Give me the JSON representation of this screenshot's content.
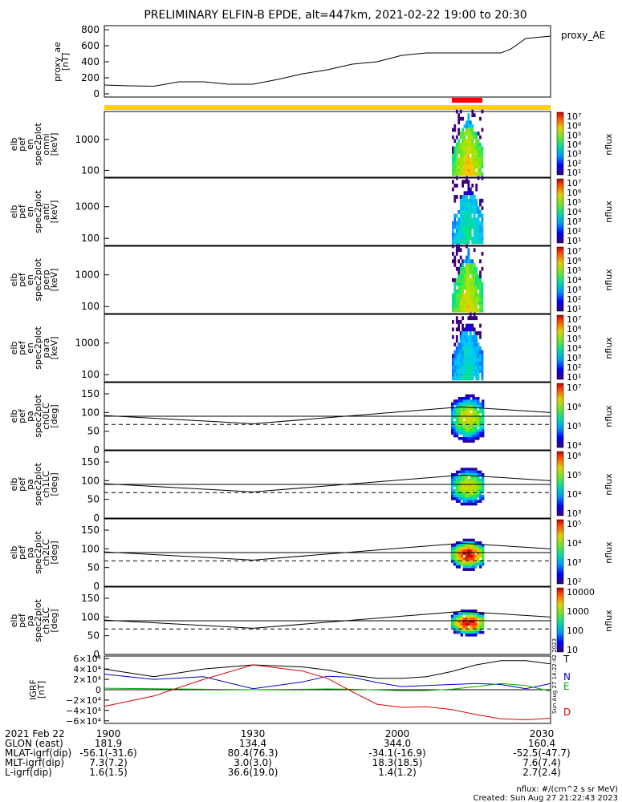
{
  "title": "PRELIMINARY ELFIN-B EPDE, alt=447km, 2021-02-22 19:00 to 20:30",
  "colors": {
    "orbit_bar": "#ffd200",
    "event_bar": "#ff0000",
    "N": "#0000cc",
    "E": "#00aa00",
    "D": "#dd0000",
    "total": "#000000"
  },
  "time_axis": {
    "ticks": [
      "1900",
      "1930",
      "2000",
      "2030"
    ],
    "start": "19:00",
    "end": "20:30"
  },
  "chart_data": [
    {
      "type": "line",
      "panel": "proxy_ae",
      "ylabel_lines": [
        "proxy_ae",
        "[nT]"
      ],
      "legend": "proxy_AE",
      "ylim": [
        -40,
        850
      ],
      "yticks": [
        "800",
        "600",
        "400",
        "200",
        "0"
      ],
      "ytick_values": [
        800,
        600,
        400,
        200,
        0
      ],
      "x_minutes": [
        0,
        5,
        10,
        15,
        20,
        25,
        30,
        35,
        40,
        45,
        50,
        55,
        60,
        65,
        70,
        75,
        80,
        82,
        85,
        90
      ],
      "values": [
        110,
        100,
        95,
        150,
        150,
        120,
        120,
        180,
        250,
        300,
        370,
        400,
        480,
        510,
        510,
        510,
        510,
        560,
        690,
        720
      ]
    },
    {
      "type": "heatmap",
      "panel": "omni",
      "ylabel_lines": [
        "elb",
        "pef",
        "en",
        "spec2plot",
        "omni",
        "[keV]"
      ],
      "yticks": [
        "1000",
        "100"
      ],
      "cbar_label": "nflux",
      "cbar_ticks": [
        "10⁷",
        "10⁶",
        "10⁵",
        "10⁴",
        "10³",
        "10²",
        "10¹"
      ]
    },
    {
      "type": "heatmap",
      "panel": "anti",
      "ylabel_lines": [
        "elb",
        "pef",
        "en",
        "spec2plot",
        "anti",
        "[keV]"
      ],
      "yticks": [
        "1000",
        "100"
      ],
      "cbar_label": "nflux",
      "cbar_ticks": [
        "10⁷",
        "10⁶",
        "10⁵",
        "10⁴",
        "10³",
        "10²",
        "10¹"
      ]
    },
    {
      "type": "heatmap",
      "panel": "perp",
      "ylabel_lines": [
        "elb",
        "pef",
        "en",
        "spec2plot",
        "perp",
        "[keV]"
      ],
      "yticks": [
        "1000",
        "100"
      ],
      "cbar_label": "nflux",
      "cbar_ticks": [
        "10⁷",
        "10⁶",
        "10⁵",
        "10⁴",
        "10³",
        "10²",
        "10¹"
      ]
    },
    {
      "type": "heatmap",
      "panel": "para",
      "ylabel_lines": [
        "elb",
        "pef",
        "en",
        "spec2plot",
        "para",
        "[keV]"
      ],
      "yticks": [
        "1000",
        "100"
      ],
      "cbar_label": "nflux",
      "cbar_ticks": [
        "10⁷",
        "10⁶",
        "10⁵",
        "10⁴",
        "10³",
        "10²",
        "10¹"
      ]
    },
    {
      "type": "heatmap",
      "panel": "ch0LC",
      "ylabel_lines": [
        "elb",
        "pef",
        "pa",
        "spec2plot",
        "ch0LC",
        "[deg]"
      ],
      "yticks": [
        "150",
        "100",
        "50",
        "0"
      ],
      "ylim": [
        0,
        180
      ],
      "cbar_label": "nflux",
      "cbar_ticks": [
        "10⁷",
        "10⁶",
        "10⁵",
        "10⁴"
      ]
    },
    {
      "type": "heatmap",
      "panel": "ch1LC",
      "ylabel_lines": [
        "elb",
        "pef",
        "pa",
        "spec2plot",
        "ch1LC",
        "[deg]"
      ],
      "yticks": [
        "150",
        "100",
        "50",
        "0"
      ],
      "ylim": [
        0,
        180
      ],
      "cbar_label": "nflux",
      "cbar_ticks": [
        "10⁶",
        "10⁵",
        "10⁴",
        "10³"
      ]
    },
    {
      "type": "heatmap",
      "panel": "ch2LC",
      "ylabel_lines": [
        "elb",
        "pef",
        "pa",
        "spec2plot",
        "ch2LC",
        "[deg]"
      ],
      "yticks": [
        "150",
        "100",
        "50",
        "0"
      ],
      "ylim": [
        0,
        180
      ],
      "cbar_label": "nflux",
      "cbar_ticks": [
        "10⁵",
        "10⁴",
        "10³",
        "10²"
      ]
    },
    {
      "type": "heatmap",
      "panel": "ch3LC",
      "ylabel_lines": [
        "elb",
        "pef",
        "pa",
        "spec2plot",
        "ch3LC",
        "[deg]"
      ],
      "yticks": [
        "150",
        "100",
        "50",
        "0"
      ],
      "ylim": [
        0,
        180
      ],
      "cbar_label": "nflux",
      "cbar_ticks": [
        "10000",
        "1000",
        "100",
        "10"
      ]
    },
    {
      "type": "line",
      "panel": "igrf",
      "ylabel_lines": [
        "IGRF",
        "[nT]"
      ],
      "yticks": [
        "6×10⁴",
        "4×10⁴",
        "2×10⁴",
        "0",
        "−2×10⁴",
        "−4×10⁴",
        "−6×10⁴"
      ],
      "ytick_values": [
        60000,
        40000,
        20000,
        0,
        -20000,
        -40000,
        -60000
      ],
      "ylim": [
        -65000,
        65000
      ],
      "x_minutes": [
        0,
        10,
        20,
        30,
        40,
        45,
        50,
        55,
        60,
        65,
        70,
        75,
        80,
        85,
        90
      ],
      "series": [
        {
          "name": "T",
          "values": [
            40000,
            25000,
            40000,
            48000,
            44000,
            38000,
            28000,
            22000,
            22000,
            25000,
            35000,
            48000,
            56000,
            56000,
            50000
          ]
        },
        {
          "name": "N",
          "values": [
            30000,
            20000,
            25000,
            2000,
            15000,
            26000,
            24000,
            14000,
            6000,
            8000,
            10000,
            12000,
            10000,
            2000,
            12000
          ]
        },
        {
          "name": "E",
          "values": [
            3000,
            2000,
            1000,
            0,
            1000,
            1500,
            1000,
            -500,
            -2000,
            -1500,
            1000,
            6000,
            12000,
            8000,
            -3000
          ]
        },
        {
          "name": "D",
          "values": [
            -32000,
            -12000,
            20000,
            48000,
            36000,
            22000,
            -4000,
            -28000,
            -34000,
            -33000,
            -38000,
            -48000,
            -56000,
            -58000,
            -55000
          ]
        }
      ]
    }
  ],
  "footer": {
    "rows": [
      {
        "label": "2021 Feb 22",
        "values": [
          "1900",
          "1930",
          "2000",
          "2030"
        ]
      },
      {
        "label": "GLON (east)",
        "values": [
          "181.9",
          "134.4",
          "344.0",
          "160.4"
        ]
      },
      {
        "label": "MLAT-igrf(dip)",
        "values": [
          "-56.1(-31.6)",
          "80.4(76.3)",
          "-34.1(-16.9)",
          "-52.5(-47.7)"
        ]
      },
      {
        "label": "MLT-igrf(dip)",
        "values": [
          "7.3(7.2)",
          "3.0(3.0)",
          "18.3(18.5)",
          "7.6(7.4)"
        ]
      },
      {
        "label": "L-igrf(dip)",
        "values": [
          "1.6(1.5)",
          "36.6(19.0)",
          "1.4(1.2)",
          "2.7(2.4)"
        ]
      }
    ],
    "units_note": "nflux: #/(cm^2 s sr MeV)",
    "created": "Created: Sun Aug 27 21:22:43 2023",
    "side_stamp": "Sun Aug 27 14:22:42 2023"
  }
}
